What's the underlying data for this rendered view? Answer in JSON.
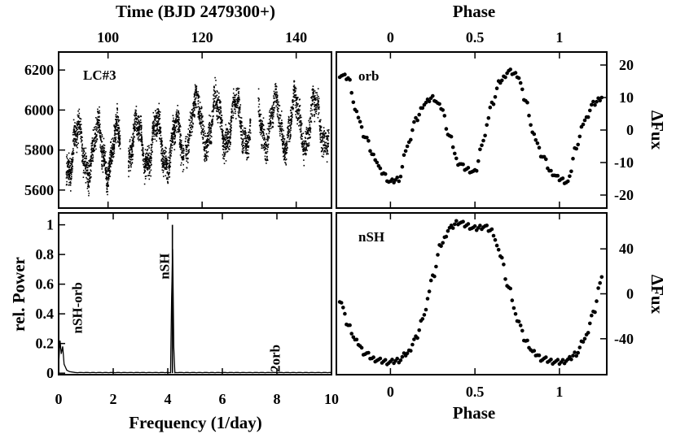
{
  "chart_data": [
    {
      "id": "lightcurve",
      "type": "scatter",
      "annotation": "LC#3",
      "top_axis_label": "Time (BJD 2479300+)",
      "top_ticks": [
        "100",
        "120",
        "140"
      ],
      "top_tick_values": [
        100,
        120,
        140
      ],
      "xlim": [
        89.5,
        147.5
      ],
      "y_ticks": [
        "5600",
        "5800",
        "6000",
        "6200"
      ],
      "y_tick_values": [
        5600,
        5800,
        6000,
        6200
      ],
      "ylim": [
        5510,
        6290
      ],
      "segments": [
        {
          "x": [
            91,
            102.5
          ],
          "mean": 5800,
          "amp": 120,
          "scatter": 45
        },
        {
          "x": [
            104.2,
            116.0
          ],
          "mean": 5830,
          "amp": 120,
          "scatter": 45
        },
        {
          "x": [
            116.3,
            130.2
          ],
          "mean": 5940,
          "amp": 120,
          "scatter": 45
        },
        {
          "x": [
            131.8,
            146.8
          ],
          "mean": 5940,
          "amp": 120,
          "scatter": 45
        }
      ],
      "period_days": 4.2
    },
    {
      "id": "orbital-phase",
      "type": "scatter",
      "annotation": "orb",
      "top_axis_label": "Phase",
      "x_ticks": [
        "0",
        "0.5",
        "1"
      ],
      "x_tick_values": [
        0,
        0.5,
        1
      ],
      "xlim": [
        -0.32,
        1.28
      ],
      "y_axis_label": "ΔFux",
      "y_ticks": [
        "-20",
        "-10",
        "0",
        "10",
        "20"
      ],
      "y_tick_values": [
        -20,
        -10,
        0,
        10,
        20
      ],
      "ylim": [
        -24,
        24
      ],
      "x": [
        -0.3,
        -0.25,
        -0.2,
        -0.15,
        -0.1,
        -0.05,
        0.0,
        0.05,
        0.1,
        0.15,
        0.2,
        0.25,
        0.3,
        0.35,
        0.4,
        0.45,
        0.5,
        0.55,
        0.6,
        0.65,
        0.7,
        0.75,
        0.8,
        0.85,
        0.9,
        0.95,
        1.0,
        1.05,
        1.1,
        1.15,
        1.2,
        1.25
      ],
      "y": [
        17,
        16,
        5,
        -2,
        -8,
        -13,
        -16,
        -15,
        -5,
        3,
        8,
        10,
        7,
        -2,
        -10,
        -12,
        -13,
        -3,
        8,
        15,
        18,
        17,
        9,
        -2,
        -8,
        -13,
        -15,
        -16,
        -5,
        3,
        8,
        10
      ]
    },
    {
      "id": "periodogram",
      "type": "line",
      "y_axis_label": "rel. Power",
      "x_axis_label": "Frequency (1/day)",
      "x_ticks": [
        "0",
        "2",
        "4",
        "6",
        "8",
        "10"
      ],
      "x_tick_values": [
        0,
        2,
        4,
        6,
        8,
        10
      ],
      "xlim": [
        0,
        10
      ],
      "y_ticks": [
        "0",
        "0.2",
        "0.4",
        "0.6",
        "0.8",
        "1"
      ],
      "y_tick_values": [
        0,
        0.2,
        0.4,
        0.6,
        0.8,
        1
      ],
      "ylim": [
        -0.01,
        1.08
      ],
      "peaks": [
        {
          "label": "nSH",
          "x": 4.17,
          "y": 1.0
        },
        {
          "label": "nSH-orb",
          "x": 0.2,
          "y": 0.18
        },
        {
          "label": "2orb",
          "x": 7.95,
          "y": 0.004
        }
      ],
      "low_frequency_power": {
        "x": [
          0.0,
          0.05,
          0.1,
          0.15,
          0.2,
          0.25,
          0.3,
          0.4,
          0.6
        ],
        "y": [
          0.06,
          0.22,
          0.13,
          0.18,
          0.06,
          0.04,
          0.02,
          0.01,
          0.005
        ]
      }
    },
    {
      "id": "nsh-phase",
      "type": "scatter",
      "annotation": "nSH",
      "x_axis_label": "Phase",
      "x_ticks": [
        "0",
        "0.5",
        "1"
      ],
      "x_tick_values": [
        0,
        0.5,
        1
      ],
      "xlim": [
        -0.32,
        1.28
      ],
      "y_axis_label": "ΔFux",
      "y_ticks": [
        "-40",
        "0",
        "40"
      ],
      "y_tick_values": [
        -40,
        0,
        40
      ],
      "ylim": [
        -72,
        72
      ],
      "x": [
        -0.3,
        -0.25,
        -0.2,
        -0.15,
        -0.1,
        -0.05,
        0.0,
        0.05,
        0.1,
        0.15,
        0.2,
        0.25,
        0.3,
        0.35,
        0.4,
        0.45,
        0.5,
        0.55,
        0.6,
        0.65,
        0.7,
        0.75,
        0.8,
        0.85,
        0.9,
        0.95,
        1.0,
        1.05,
        1.1,
        1.15,
        1.2,
        1.25
      ],
      "y": [
        -5,
        -28,
        -43,
        -53,
        -58,
        -60,
        -61,
        -59,
        -53,
        -40,
        -18,
        15,
        44,
        58,
        64,
        61,
        58,
        60,
        56,
        35,
        5,
        -22,
        -42,
        -53,
        -58,
        -60,
        -61,
        -59,
        -53,
        -40,
        -18,
        15
      ]
    }
  ]
}
